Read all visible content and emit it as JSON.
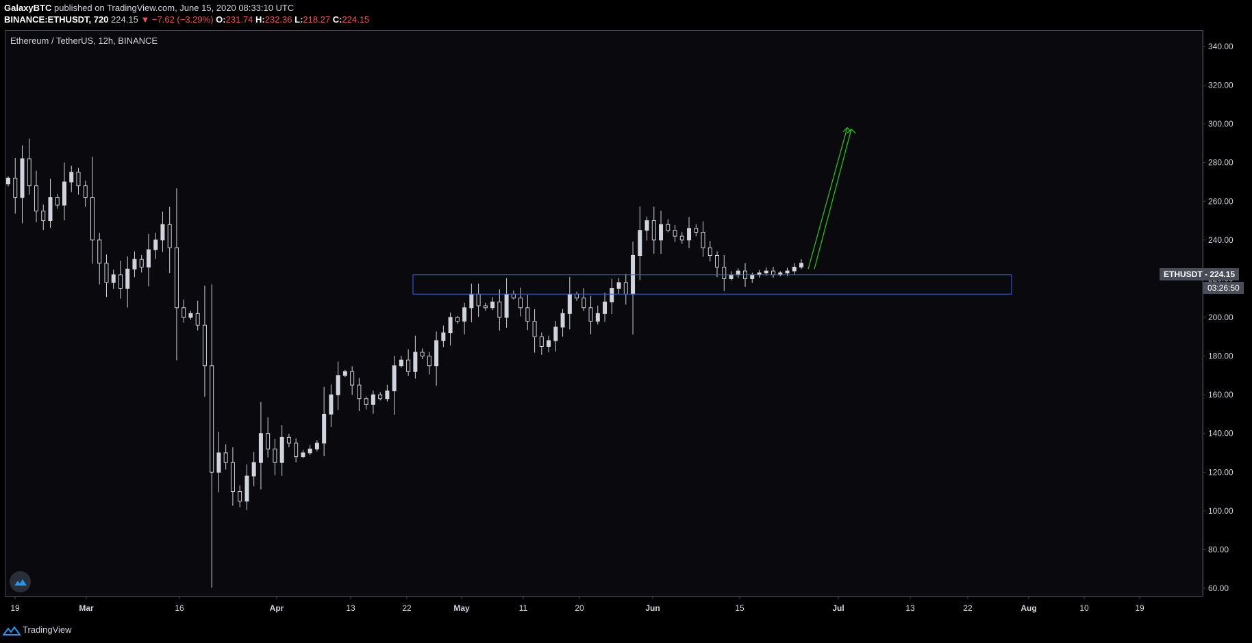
{
  "header": {
    "publisher": "GalaxyBTC",
    "published_text": " published on TradingView.com, June 15, 2020 08:33:10 UTC",
    "symbol": "BINANCE:ETHUSDT, 720",
    "last": "224.15",
    "change": "▼ −7.62 (−3.29%)",
    "o_label": "O:",
    "o_value": "231.74",
    "h_label": "H:",
    "h_value": "232.36",
    "l_label": "L:",
    "l_value": "218.27",
    "c_label": "C:",
    "c_value": "224.15"
  },
  "chart_title": "Ethereum / TetherUS, 12h, BINANCE",
  "price_tag": {
    "symbol": "ETHUSDT",
    "price": "224.15",
    "timer": "03:26:50"
  },
  "footer": {
    "brand": "TradingView"
  },
  "colors": {
    "background": "#0a090d",
    "candle": "#d1d4dc",
    "zone": "#2962ff",
    "arrow": "#21c50f"
  },
  "chart_data": {
    "type": "candlestick",
    "title": "Ethereum / TetherUS, 12h, BINANCE",
    "ylim": [
      55,
      348
    ],
    "y_ticks": [
      "340.00",
      "320.00",
      "300.00",
      "280.00",
      "260.00",
      "240.00",
      "220.00",
      "200.00",
      "180.00",
      "160.00",
      "140.00",
      "120.00",
      "100.00",
      "80.00",
      "60.00"
    ],
    "x_ticks": [
      {
        "label": "19",
        "bold": false
      },
      {
        "label": "Mar",
        "bold": true
      },
      {
        "label": "16",
        "bold": false
      },
      {
        "label": "Apr",
        "bold": true
      },
      {
        "label": "13",
        "bold": false
      },
      {
        "label": "22",
        "bold": false
      },
      {
        "label": "May",
        "bold": true
      },
      {
        "label": "11",
        "bold": false
      },
      {
        "label": "20",
        "bold": false
      },
      {
        "label": "Jun",
        "bold": true
      },
      {
        "label": "15",
        "bold": false
      },
      {
        "label": "Jul",
        "bold": true
      },
      {
        "label": "13",
        "bold": false
      },
      {
        "label": "22",
        "bold": false
      },
      {
        "label": "Aug",
        "bold": true
      },
      {
        "label": "10",
        "bold": false
      },
      {
        "label": "19",
        "bold": false
      }
    ],
    "close_path": [
      272,
      262,
      282,
      268,
      255,
      250,
      262,
      258,
      270,
      275,
      268,
      262,
      240,
      228,
      218,
      222,
      215,
      225,
      230,
      226,
      235,
      240,
      248,
      236,
      205,
      200,
      202,
      196,
      175,
      120,
      130,
      125,
      110,
      105,
      118,
      125,
      140,
      132,
      125,
      138,
      135,
      128,
      130,
      132,
      135,
      150,
      160,
      170,
      172,
      165,
      158,
      155,
      160,
      158,
      162,
      175,
      178,
      172,
      182,
      180,
      175,
      188,
      192,
      200,
      198,
      205,
      212,
      206,
      205,
      208,
      200,
      212,
      210,
      205,
      198,
      190,
      185,
      188,
      195,
      202,
      212,
      210,
      205,
      198,
      202,
      208,
      215,
      218,
      212,
      232,
      245,
      250,
      240,
      248,
      245,
      242,
      240,
      246,
      244,
      236,
      232,
      226,
      220,
      222,
      224,
      220,
      222,
      223,
      224,
      222,
      223,
      224,
      226,
      228
    ],
    "support_zone": {
      "low": 212,
      "high": 222,
      "note": ""
    },
    "projection_arrow": {
      "from": 225,
      "to": 298
    }
  }
}
